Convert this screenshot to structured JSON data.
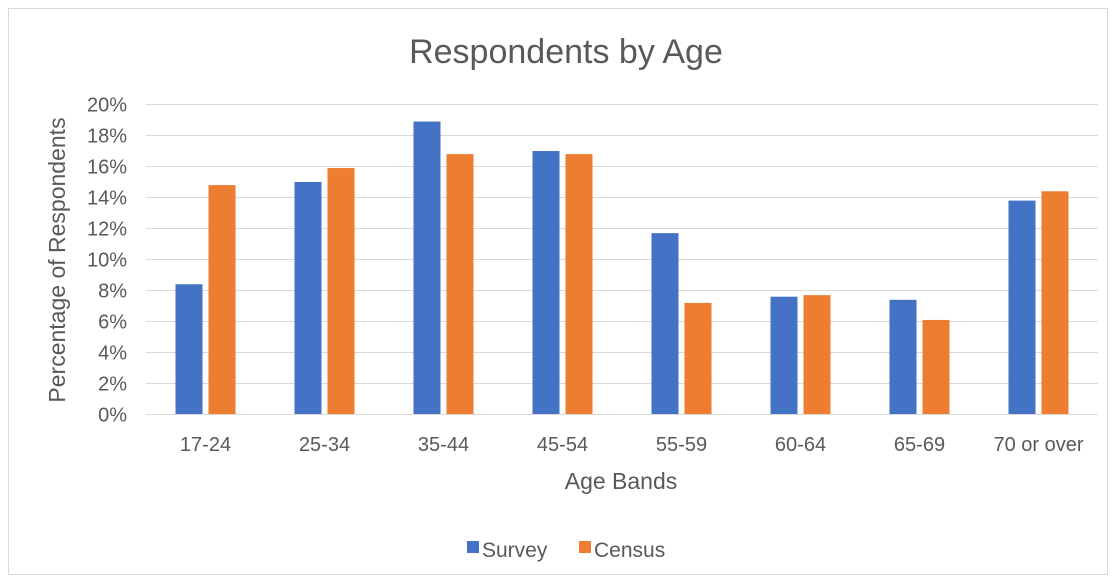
{
  "chart_data": {
    "type": "bar",
    "title": "Respondents by Age",
    "xlabel": "Age Bands",
    "ylabel": "Percentage of Respondents",
    "categories": [
      "17-24",
      "25-34",
      "35-44",
      "45-54",
      "55-59",
      "60-64",
      "65-69",
      "70 or over"
    ],
    "series": [
      {
        "name": "Survey",
        "color": "#4472c4",
        "values": [
          8.4,
          15.0,
          18.9,
          17.0,
          11.7,
          7.6,
          7.4,
          13.8
        ]
      },
      {
        "name": "Census",
        "color": "#ed7d31",
        "values": [
          14.8,
          15.9,
          16.8,
          16.8,
          7.2,
          7.7,
          6.1,
          14.4
        ]
      }
    ],
    "ylim": [
      0,
      20
    ],
    "yticks": [
      "0%",
      "2%",
      "4%",
      "6%",
      "8%",
      "10%",
      "12%",
      "14%",
      "16%",
      "18%",
      "20%"
    ],
    "grid": true,
    "legend_position": "bottom"
  }
}
